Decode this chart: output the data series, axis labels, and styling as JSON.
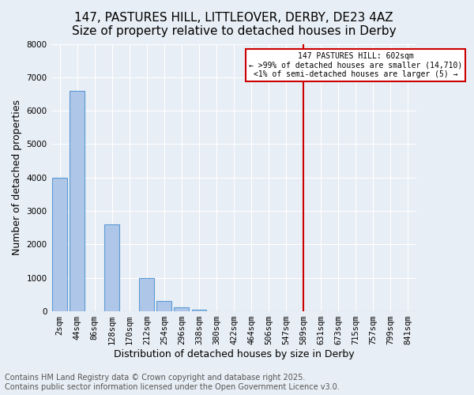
{
  "title1": "147, PASTURES HILL, LITTLEOVER, DERBY, DE23 4AZ",
  "title2": "Size of property relative to detached houses in Derby",
  "xlabel": "Distribution of detached houses by size in Derby",
  "ylabel": "Number of detached properties",
  "footer1": "Contains HM Land Registry data © Crown copyright and database right 2025.",
  "footer2": "Contains public sector information licensed under the Open Government Licence v3.0.",
  "bin_labels": [
    "2sqm",
    "44sqm",
    "86sqm",
    "128sqm",
    "170sqm",
    "212sqm",
    "254sqm",
    "296sqm",
    "338sqm",
    "380sqm",
    "422sqm",
    "464sqm",
    "506sqm",
    "547sqm",
    "589sqm",
    "631sqm",
    "673sqm",
    "715sqm",
    "757sqm",
    "799sqm",
    "841sqm"
  ],
  "bar_values": [
    4000,
    6600,
    0,
    2600,
    0,
    1000,
    300,
    120,
    60,
    0,
    0,
    0,
    0,
    0,
    0,
    0,
    0,
    0,
    0,
    0,
    0
  ],
  "bar_color": "#aec6e8",
  "bar_edge_color": "#5b9bd5",
  "ylim": [
    0,
    8000
  ],
  "yticks": [
    0,
    1000,
    2000,
    3000,
    4000,
    5000,
    6000,
    7000,
    8000
  ],
  "vline_index": 14,
  "vline_color": "#cc0000",
  "annotation_title": "147 PASTURES HILL: 602sqm",
  "annotation_line1": "← >99% of detached houses are smaller (14,710)",
  "annotation_line2": "<1% of semi-detached houses are larger (5) →",
  "background_color": "#e8eef5",
  "grid_color": "#ffffff",
  "title_fontsize": 11,
  "axis_label_fontsize": 9,
  "tick_fontsize": 7.5,
  "footer_fontsize": 7
}
